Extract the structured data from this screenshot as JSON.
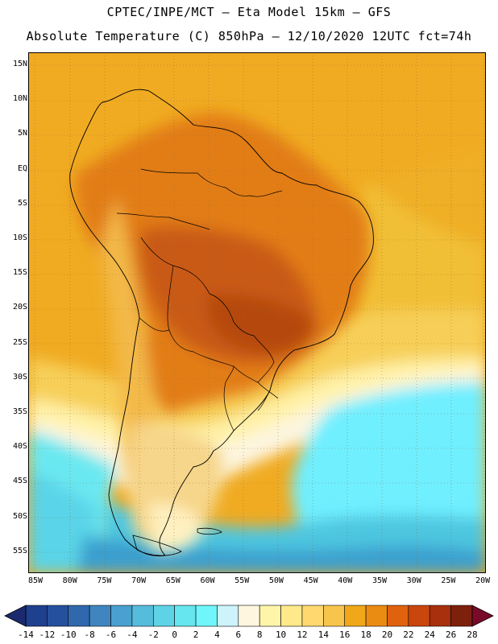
{
  "header": {
    "line1": "CPTEC/INPE/MCT –  Eta Model 15km – GFS",
    "line2": "Absolute Temperature (C) 850hPa – 12/10/2020 12UTC fct=74h"
  },
  "axes": {
    "lat_labels": [
      "15N",
      "10N",
      "5N",
      "EQ",
      "5S",
      "10S",
      "15S",
      "20S",
      "25S",
      "30S",
      "35S",
      "40S",
      "45S",
      "50S",
      "55S"
    ],
    "lon_labels": [
      "85W",
      "80W",
      "75W",
      "70W",
      "65W",
      "60W",
      "55W",
      "50W",
      "45W",
      "40W",
      "35W",
      "30W",
      "25W",
      "20W"
    ]
  },
  "colorbar": {
    "labels": [
      "-14",
      "-12",
      "-10",
      "-8",
      "-6",
      "-4",
      "-2",
      "0",
      "2",
      "4",
      "6",
      "8",
      "10",
      "12",
      "14",
      "16",
      "18",
      "20",
      "22",
      "24",
      "26",
      "28"
    ],
    "colors": [
      "#1f3f8f",
      "#25509c",
      "#2f68ad",
      "#3f86c0",
      "#4aa0cf",
      "#56bcdc",
      "#5fd3e6",
      "#66e6ee",
      "#6ff6fb",
      "#cdf4fb",
      "#fff6e0",
      "#fff5a8",
      "#ffe98a",
      "#ffd870",
      "#f8c54c",
      "#f0a81a",
      "#eb8c12",
      "#e0620c",
      "#c9460c",
      "#a8300c",
      "#7d200c"
    ],
    "left_arrow_color": "#1a2a6c",
    "right_arrow_color": "#7a0a2a"
  },
  "map": {
    "field_variable": "Absolute Temperature (C) 850hPa"
  }
}
